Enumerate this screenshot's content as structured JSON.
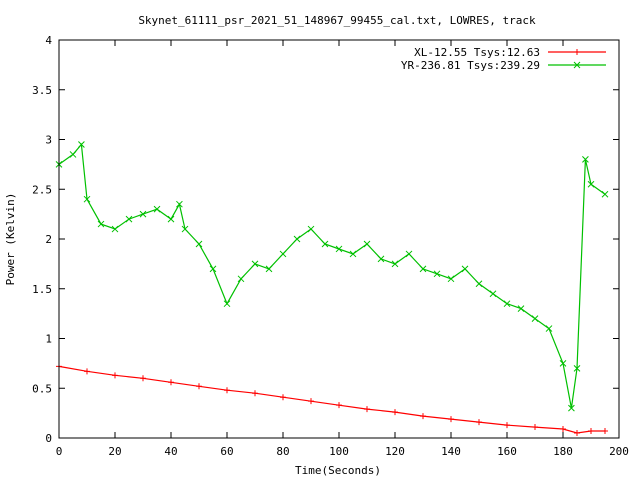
{
  "chart_data": {
    "type": "line",
    "title": "Skynet_61111_psr_2021_51_148967_99455_cal.txt, LOWRES, track",
    "xlabel": "Time(Seconds)",
    "ylabel": "Power (Kelvin)",
    "xlim": [
      0,
      200
    ],
    "ylim": [
      0,
      4
    ],
    "x_ticks": [
      0,
      20,
      40,
      60,
      80,
      100,
      120,
      140,
      160,
      180,
      200
    ],
    "x_tick_labels": [
      "0",
      "20",
      "40",
      "60",
      "80",
      "100",
      "120",
      "140",
      "160",
      "180",
      "200"
    ],
    "y_ticks": [
      0,
      0.5,
      1,
      1.5,
      2,
      2.5,
      3,
      3.5,
      4
    ],
    "y_tick_labels": [
      "0",
      "0.5",
      "1",
      "1.5",
      "2",
      "2.5",
      "3",
      "3.5",
      "4"
    ],
    "legend_position": "top-right",
    "grid": false,
    "series": [
      {
        "name": "XL-12.55 Tsys:12.63",
        "color": "#ff0000",
        "marker": "plus",
        "x": [
          0,
          10,
          20,
          30,
          40,
          50,
          60,
          70,
          80,
          90,
          100,
          110,
          120,
          130,
          140,
          150,
          160,
          170,
          180,
          185,
          190,
          195
        ],
        "values": [
          0.72,
          0.67,
          0.63,
          0.6,
          0.56,
          0.52,
          0.48,
          0.45,
          0.41,
          0.37,
          0.33,
          0.29,
          0.26,
          0.22,
          0.19,
          0.16,
          0.13,
          0.11,
          0.09,
          0.05,
          0.07,
          0.07
        ]
      },
      {
        "name": "YR-236.81 Tsys:239.29",
        "color": "#00c000",
        "marker": "cross",
        "x": [
          0,
          5,
          8,
          10,
          15,
          20,
          25,
          30,
          35,
          40,
          43,
          45,
          50,
          55,
          60,
          65,
          70,
          75,
          80,
          85,
          90,
          95,
          100,
          105,
          110,
          115,
          120,
          125,
          130,
          135,
          140,
          145,
          150,
          155,
          160,
          165,
          170,
          175,
          180,
          183,
          185,
          188,
          190,
          195
        ],
        "values": [
          2.75,
          2.85,
          2.95,
          2.4,
          2.15,
          2.1,
          2.2,
          2.25,
          2.3,
          2.2,
          2.35,
          2.1,
          1.95,
          1.7,
          1.35,
          1.6,
          1.75,
          1.7,
          1.85,
          2.0,
          2.1,
          1.95,
          1.9,
          1.85,
          1.95,
          1.8,
          1.75,
          1.85,
          1.7,
          1.65,
          1.6,
          1.7,
          1.55,
          1.45,
          1.35,
          1.3,
          1.2,
          1.1,
          0.75,
          0.3,
          0.7,
          2.8,
          2.55,
          2.45
        ]
      }
    ]
  }
}
